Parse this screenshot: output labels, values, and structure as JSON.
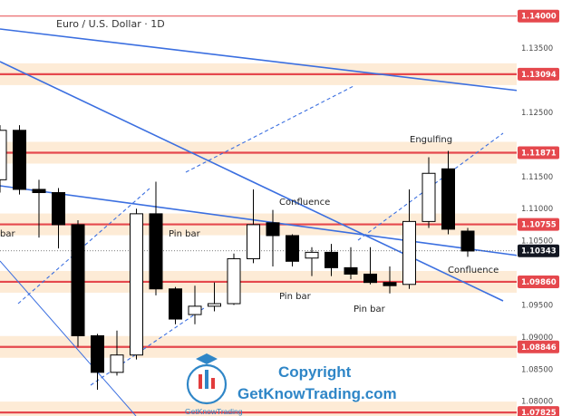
{
  "chart_data": {
    "type": "candlestick",
    "title": "Euro / U.S. Dollar · 1D",
    "ylim": [
      1.0777,
      1.1425
    ],
    "y_ticks": [
      1.135,
      1.125,
      1.115,
      1.11,
      1.105,
      1.095,
      1.09,
      1.085,
      1.08
    ],
    "price_badges": [
      {
        "label": "1.14000",
        "value": 1.14,
        "color": "#e5484d",
        "line": true,
        "zone": false
      },
      {
        "label": "1.13094",
        "value": 1.13094,
        "color": "#e5484d",
        "line": true,
        "zone": true
      },
      {
        "label": "1.11871",
        "value": 1.11871,
        "color": "#e5484d",
        "line": true,
        "zone": true
      },
      {
        "label": "1.10755",
        "value": 1.10755,
        "color": "#e5484d",
        "line": true,
        "zone": true
      },
      {
        "label": "1.10343",
        "value": 1.10343,
        "color": "#131722",
        "line": false,
        "zone": false
      },
      {
        "label": "1.09860",
        "value": 1.0986,
        "color": "#e5484d",
        "line": true,
        "zone": true
      },
      {
        "label": "1.08846",
        "value": 1.08846,
        "color": "#e5484d",
        "line": true,
        "zone": true
      },
      {
        "label": "1.07825",
        "value": 1.07825,
        "color": "#e5484d",
        "line": true,
        "zone": true
      }
    ],
    "last_price": 1.10343,
    "candles": [
      {
        "o": 1.1145,
        "h": 1.123,
        "l": 1.1125,
        "c": 1.1222
      },
      {
        "o": 1.1222,
        "h": 1.123,
        "l": 1.1122,
        "c": 1.113
      },
      {
        "o": 1.113,
        "h": 1.1145,
        "l": 1.1055,
        "c": 1.1125
      },
      {
        "o": 1.1125,
        "h": 1.1132,
        "l": 1.1038,
        "c": 1.1075
      },
      {
        "o": 1.1075,
        "h": 1.1082,
        "l": 1.0885,
        "c": 1.0902
      },
      {
        "o": 1.0902,
        "h": 1.0905,
        "l": 1.0818,
        "c": 1.0845
      },
      {
        "o": 1.0845,
        "h": 1.091,
        "l": 1.084,
        "c": 1.0872
      },
      {
        "o": 1.0872,
        "h": 1.11,
        "l": 1.0865,
        "c": 1.1092
      },
      {
        "o": 1.1092,
        "h": 1.1142,
        "l": 1.0965,
        "c": 1.0975
      },
      {
        "o": 1.0975,
        "h": 1.0978,
        "l": 1.092,
        "c": 1.0928
      },
      {
        "o": 1.0935,
        "h": 1.098,
        "l": 1.092,
        "c": 1.0948
      },
      {
        "o": 1.0948,
        "h": 1.0985,
        "l": 1.094,
        "c": 1.0952
      },
      {
        "o": 1.0952,
        "h": 1.103,
        "l": 1.095,
        "c": 1.1022
      },
      {
        "o": 1.1022,
        "h": 1.113,
        "l": 1.1015,
        "c": 1.1075
      },
      {
        "o": 1.1078,
        "h": 1.1098,
        "l": 1.101,
        "c": 1.1058
      },
      {
        "o": 1.1058,
        "h": 1.106,
        "l": 1.101,
        "c": 1.1018
      },
      {
        "o": 1.1023,
        "h": 1.104,
        "l": 1.0995,
        "c": 1.1032
      },
      {
        "o": 1.1032,
        "h": 1.1045,
        "l": 1.0995,
        "c": 1.1008
      },
      {
        "o": 1.1008,
        "h": 1.104,
        "l": 1.099,
        "c": 1.0998
      },
      {
        "o": 1.0998,
        "h": 1.104,
        "l": 1.0982,
        "c": 1.0985
      },
      {
        "o": 1.0985,
        "h": 1.101,
        "l": 1.0968,
        "c": 1.098
      },
      {
        "o": 1.0982,
        "h": 1.113,
        "l": 1.0975,
        "c": 1.108
      },
      {
        "o": 1.108,
        "h": 1.118,
        "l": 1.107,
        "c": 1.1155
      },
      {
        "o": 1.1162,
        "h": 1.119,
        "l": 1.106,
        "c": 1.1068
      },
      {
        "o": 1.1065,
        "h": 1.107,
        "l": 1.1025,
        "c": 1.1034
      }
    ],
    "annotations": [
      {
        "text": "bar"
      },
      {
        "text": "Pin bar"
      },
      {
        "text": "Confluence"
      },
      {
        "text": "Pin bar"
      },
      {
        "text": "Pin bar"
      },
      {
        "text": "Engulfing"
      },
      {
        "text": "Confluence"
      }
    ],
    "grid": false,
    "legend": "none"
  },
  "watermark": {
    "copyright": "Copyright",
    "site": "GetKnowTrading.com",
    "logo_text": "GetKnowTrading"
  },
  "colors": {
    "bull_body": "#ffffff",
    "bear_body": "#000000",
    "trendline": "#3b6fe0",
    "level_line": "#e5484d",
    "zone_fill": "#fdebd6",
    "brand_blue": "#2f86c7",
    "brand_red": "#e23c3c"
  }
}
